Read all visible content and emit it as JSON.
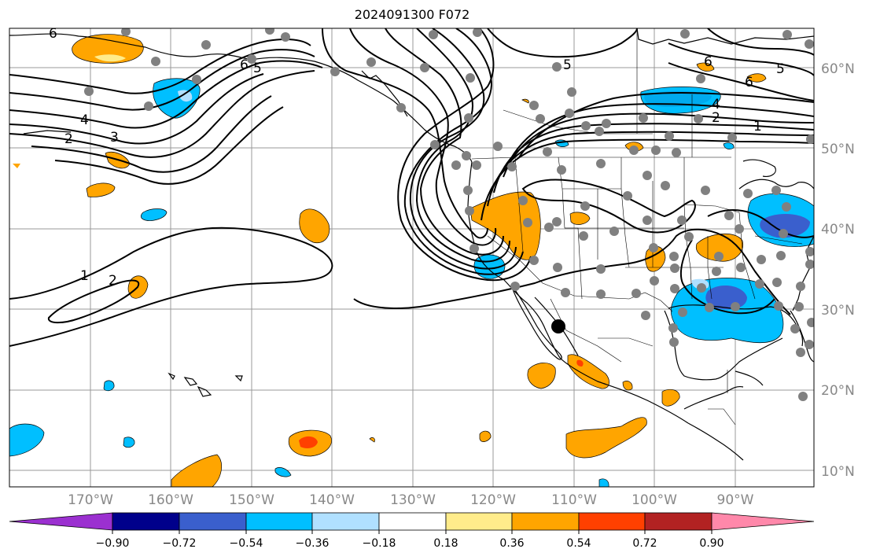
{
  "title": "2024091300 F072",
  "colors": {
    "land": "#000000",
    "grid": "#999999",
    "contour": "#000000",
    "station": "#808080",
    "marker": "#000000"
  },
  "contour_labels": [
    "1",
    "2",
    "3",
    "4",
    "5",
    "6"
  ],
  "lon_labels": [
    "170°W",
    "160°W",
    "150°W",
    "140°W",
    "130°W",
    "120°W",
    "110°W",
    "100°W",
    "90°W"
  ],
  "lat_labels": [
    "60°N",
    "50°N",
    "40°N",
    "30°N",
    "20°N",
    "10°N"
  ],
  "colorbar": {
    "colors": [
      "#9b30d0",
      "#00008b",
      "#3a5fcd",
      "#00bfff",
      "#b0e0ff",
      "#ffffff",
      "#ffec8b",
      "#ffa500",
      "#ff4000",
      "#b22222",
      "#ff88aa"
    ],
    "labels": [
      "−0.90",
      "−0.72",
      "−0.54",
      "−0.36",
      "−0.18",
      "0.18",
      "0.36",
      "0.54",
      "0.72",
      "0.90"
    ]
  }
}
